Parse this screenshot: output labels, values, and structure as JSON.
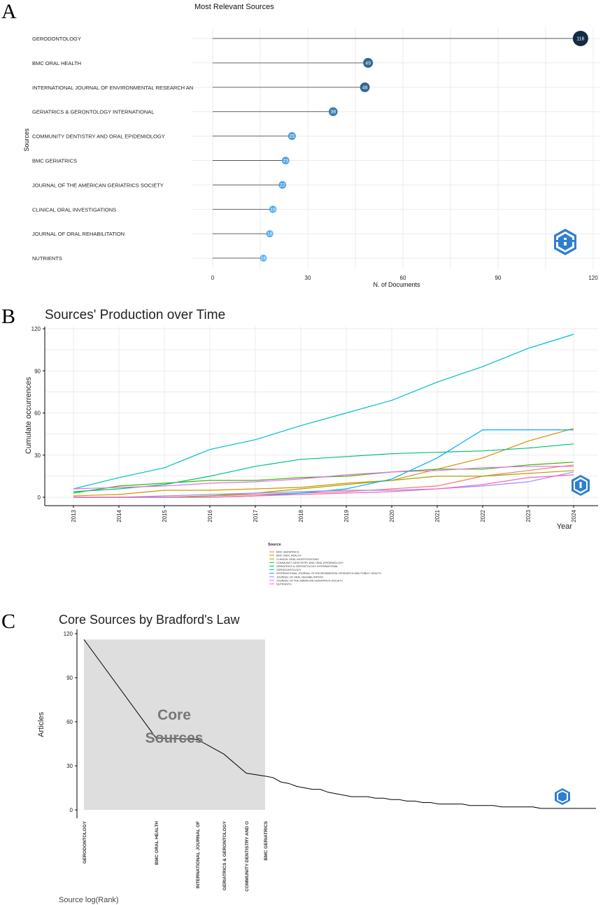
{
  "panels": {
    "a_letter": "A",
    "b_letter": "B",
    "c_letter": "C"
  },
  "chart_data": [
    {
      "type": "lollipop",
      "title": "Most Relevant Sources",
      "xlabel": "N. of Documents",
      "ylabel": "Sources",
      "xlim": [
        0,
        120
      ],
      "xticks": [
        0,
        30,
        60,
        90,
        120
      ],
      "categories": [
        "GERODONTOLOGY",
        "BMC ORAL HEALTH",
        "INTERNATIONAL JOURNAL OF ENVIRONMENTAL RESEARCH AN",
        "GERIATRICS & GERONTOLOGY INTERNATIONAL",
        "COMMUNITY DENTISTRY AND ORAL EPIDEMIOLOGY",
        "BMC GERIATRICS",
        "JOURNAL OF THE AMERICAN GERIATRICS SOCIETY",
        "CLINICAL ORAL INVESTIGATIONS",
        "JOURNAL OF ORAL REHABILITATION",
        "NUTRIENTS"
      ],
      "values": [
        116,
        49,
        48,
        38,
        25,
        23,
        22,
        19,
        18,
        16
      ]
    },
    {
      "type": "line",
      "title": "Sources' Production over Time",
      "xlabel": "Year",
      "ylabel": "Cumulate occurrences",
      "ylim": [
        0,
        120
      ],
      "yticks": [
        0,
        30,
        60,
        90,
        120
      ],
      "x": [
        2013,
        2014,
        2015,
        2016,
        2017,
        2018,
        2019,
        2020,
        2021,
        2022,
        2023,
        2024
      ],
      "legend_title": "Source",
      "legend_position": "bottom-center",
      "series": [
        {
          "name": "BMC GERIATRICS",
          "color": "#F8766D",
          "values": [
            0,
            0,
            0,
            1,
            2,
            3,
            4,
            6,
            8,
            15,
            19,
            23
          ]
        },
        {
          "name": "BMC ORAL HEALTH",
          "color": "#D89000",
          "values": [
            1,
            2,
            5,
            5,
            6,
            7,
            10,
            12,
            20,
            28,
            40,
            49
          ]
        },
        {
          "name": "CLINICAL ORAL INVESTIGATIONS",
          "color": "#A3A500",
          "values": [
            0,
            0,
            0,
            1,
            3,
            6,
            9,
            12,
            15,
            15,
            17,
            19
          ]
        },
        {
          "name": "COMMUNITY DENTISTRY AND ORAL EPIDEMIOLOGY",
          "color": "#39B600",
          "values": [
            3,
            8,
            10,
            12,
            12,
            14,
            15,
            18,
            20,
            20,
            23,
            25
          ]
        },
        {
          "name": "GERIATRICS & GERONTOLOGY INTERNATIONAL",
          "color": "#00BF7D",
          "values": [
            4,
            6,
            9,
            15,
            22,
            27,
            29,
            31,
            32,
            33,
            35,
            38
          ]
        },
        {
          "name": "GERODONTOLOGY",
          "color": "#00BFC4",
          "values": [
            6,
            14,
            21,
            34,
            41,
            51,
            60,
            69,
            82,
            93,
            106,
            116
          ]
        },
        {
          "name": "INTERNATIONAL JOURNAL OF ENVIRONMENTAL RESEARCH AND PUBLIC HEALTH",
          "color": "#00B0F6",
          "values": [
            0,
            0,
            0,
            0,
            1,
            3,
            6,
            13,
            28,
            48,
            48,
            48
          ]
        },
        {
          "name": "JOURNAL OF ORAL REHABILITATION",
          "color": "#9590FF",
          "values": [
            0,
            0,
            1,
            2,
            3,
            4,
            5,
            5,
            6,
            8,
            11,
            18
          ]
        },
        {
          "name": "JOURNAL OF THE AMERICAN GERIATRICS SOCIETY",
          "color": "#E76BF3",
          "values": [
            6,
            7,
            8,
            10,
            11,
            13,
            16,
            18,
            19,
            21,
            22,
            22
          ]
        },
        {
          "name": "NUTRIENTS",
          "color": "#FF62BC",
          "values": [
            0,
            0,
            0,
            0,
            1,
            2,
            3,
            4,
            6,
            9,
            14,
            16
          ]
        }
      ]
    },
    {
      "type": "line",
      "title": "Core Sources by Bradford's Law",
      "xlabel": "Source log(Rank)",
      "ylabel": "Articles",
      "ylim": [
        0,
        120
      ],
      "yticks": [
        0,
        30,
        60,
        90,
        120
      ],
      "zone_label_line1": "Core",
      "zone_label_line2": "Sources",
      "x_labels": [
        "GERODONTOLOGY",
        "BMC ORAL HEALTH",
        "INTERNATIONAL JOURNAL OF",
        "GERIATRICS & GERONTOLOGY",
        "COMMUNITY DENTISTRY AND O",
        "BMC GERIATRICS"
      ],
      "values": [
        116,
        49,
        48,
        38,
        25,
        23,
        22,
        19,
        18,
        16,
        15,
        14,
        14,
        12,
        11,
        10,
        9,
        9,
        9,
        8,
        8,
        7,
        7,
        6,
        6,
        5,
        5,
        4,
        4,
        4,
        4,
        3,
        3,
        3,
        3,
        2,
        2,
        2,
        2,
        2,
        1,
        1,
        1,
        1,
        1,
        1,
        1,
        1
      ],
      "core_count": 6
    }
  ]
}
